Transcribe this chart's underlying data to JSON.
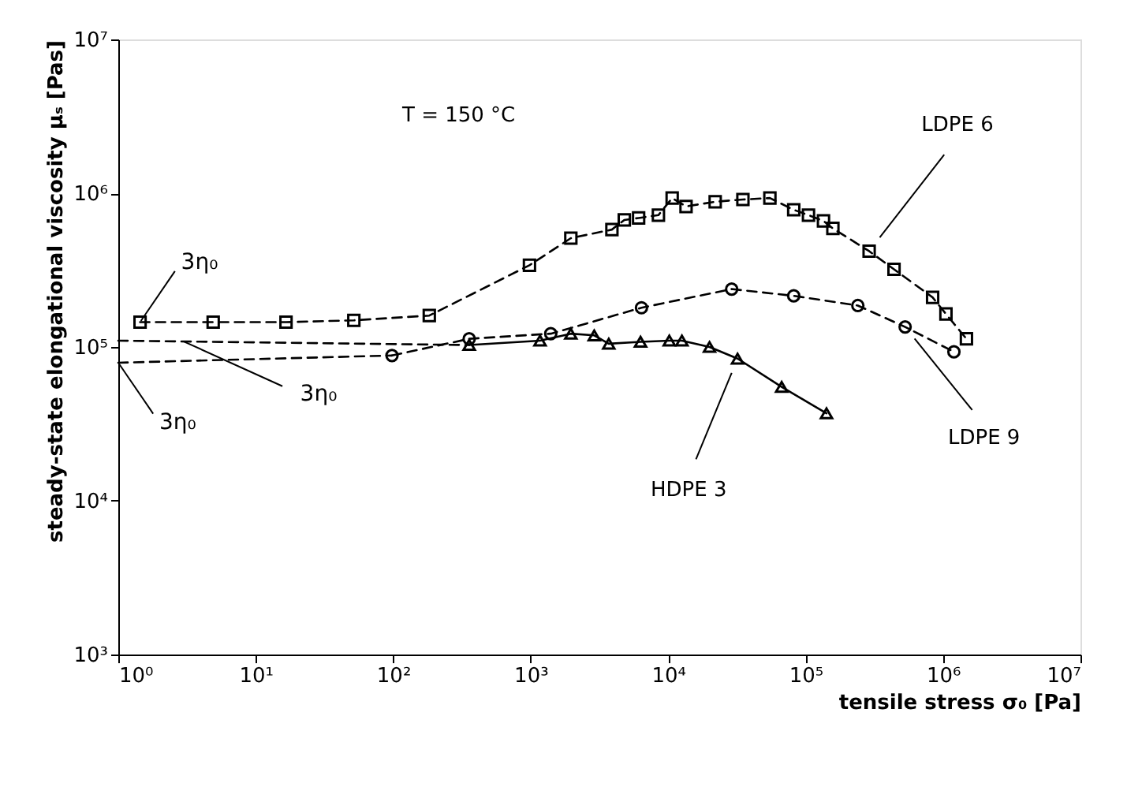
{
  "chart_data": {
    "type": "line",
    "xlabel": "tensile stress σ₀ [Pa]",
    "ylabel": "steady-state elongational viscosity μₛ [Pas]",
    "log": "xy",
    "grid": false,
    "xlim": [
      1,
      10000000
    ],
    "ylim": [
      1000,
      10000000
    ],
    "xticks": [
      {
        "value": 1,
        "label": "10⁰"
      },
      {
        "value": 10,
        "label": "10¹"
      },
      {
        "value": 100,
        "label": "10²"
      },
      {
        "value": 1000,
        "label": "10³"
      },
      {
        "value": 10000,
        "label": "10⁴"
      },
      {
        "value": 100000,
        "label": "10⁵"
      },
      {
        "value": 1000000,
        "label": "10⁶"
      },
      {
        "value": 10000000,
        "label": "10⁷"
      }
    ],
    "yticks": [
      {
        "value": 1000,
        "label": "10³"
      },
      {
        "value": 10000,
        "label": "10⁴"
      },
      {
        "value": 100000,
        "label": "10⁵"
      },
      {
        "value": 1000000,
        "label": "10⁶"
      },
      {
        "value": 10000000,
        "label": "10⁷"
      }
    ],
    "annotations": [
      "T = 150 °C",
      {
        "text": "3η₀",
        "x": 1.44,
        "y": 145000
      },
      {
        "text": "3η₀",
        "x": 2.9,
        "y": 110000
      },
      {
        "text": "3η₀",
        "x": 1,
        "y": 79000
      }
    ],
    "series": [
      {
        "name": "LDPE 6",
        "color": "#000000",
        "marker": "square",
        "line_style": "dashed",
        "x": [
          1.44,
          4.9,
          16.6,
          51.7,
          183,
          980,
          1960,
          3900,
          4800,
          6100,
          8500,
          10700,
          13500,
          22000,
          35000,
          55000,
          82000,
          105000,
          135000,
          158000,
          290000,
          440000,
          840000,
          1050000,
          1480000
        ],
        "values": [
          145000,
          145000,
          145000,
          149000,
          160000,
          340000,
          510000,
          580000,
          670000,
          690000,
          720000,
          930000,
          820000,
          880000,
          910000,
          930000,
          780000,
          720000,
          660000,
          590000,
          420000,
          320000,
          210000,
          164000,
          113000
        ]
      },
      {
        "name": "LDPE 9",
        "color": "#000000",
        "marker": "circle",
        "line_style": "dashed",
        "x": [
          98,
          357,
          1400,
          6400,
          29000,
          82000,
          240000,
          530000,
          1200000
        ],
        "values": [
          88000,
          113000,
          122000,
          180000,
          238000,
          215000,
          186000,
          135000,
          93000
        ]
      },
      {
        "name": "HDPE 3",
        "color": "#000000",
        "marker": "triangle",
        "line_style": "solid",
        "x": [
          357,
          1170,
          1960,
          2900,
          3700,
          6300,
          10200,
          12600,
          20000,
          32000,
          67000,
          142000
        ],
        "values": [
          103000,
          110000,
          122000,
          119000,
          105000,
          108000,
          110000,
          110000,
          100000,
          84000,
          55000,
          37000
        ]
      },
      {
        "type": "line",
        "color": "#000000",
        "marker": "none",
        "line_style": "dashed",
        "x": [
          1,
          98
        ],
        "values": [
          79000,
          88000
        ]
      },
      {
        "type": "line",
        "color": "#000000",
        "marker": "none",
        "line_style": "dashed",
        "x": [
          1,
          357
        ],
        "values": [
          110000,
          103000
        ]
      }
    ]
  }
}
